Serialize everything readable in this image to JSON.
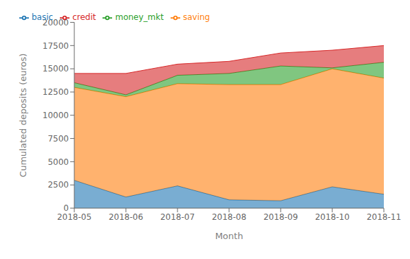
{
  "chart_data": {
    "type": "area",
    "stacked": true,
    "categories": [
      "2018-05",
      "2018-06",
      "2018-07",
      "2018-08",
      "2018-09",
      "2018-10",
      "2018-11"
    ],
    "series": [
      {
        "name": "basic",
        "color": "#1f77b4",
        "values": [
          3000,
          1200,
          2400,
          900,
          800,
          2300,
          1500
        ]
      },
      {
        "name": "saving",
        "color": "#ff7f0e",
        "values": [
          10000,
          10800,
          11000,
          12400,
          12500,
          12700,
          12500
        ]
      },
      {
        "name": "money_mkt",
        "color": "#2ca02c",
        "values": [
          500,
          200,
          900,
          1200,
          2000,
          100,
          1700
        ]
      },
      {
        "name": "credit",
        "color": "#d62728",
        "values": [
          1000,
          2300,
          1200,
          1300,
          1400,
          1900,
          1800
        ]
      }
    ],
    "xlabel": "Month",
    "ylabel": "Cumulated deposits (euros)",
    "ylim": [
      0,
      20000
    ],
    "yticks": [
      0,
      2500,
      5000,
      7500,
      10000,
      12500,
      15000,
      17500,
      20000
    ],
    "grid": false,
    "legend": "upper left"
  }
}
